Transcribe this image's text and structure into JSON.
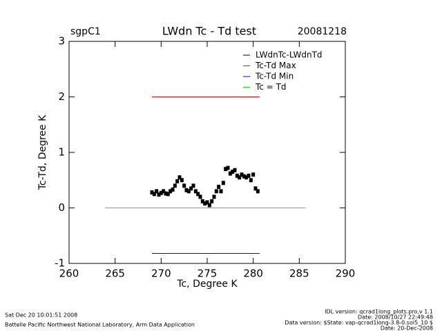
{
  "chart_data": {
    "type": "line",
    "title": "LWdn Tc - Td test",
    "site": "sgpC1",
    "date": "20081218",
    "xlabel": "Tc, Degree K",
    "ylabel": "Tc-Td, Degree K",
    "xlim": [
      260,
      290
    ],
    "xticks": [
      260,
      265,
      270,
      275,
      280,
      285,
      290
    ],
    "ylim": [
      -1,
      3
    ],
    "yticks": [
      -1,
      0,
      1,
      2,
      3
    ],
    "legend": "top-right",
    "series": [
      {
        "name": "LWdnTc-LWdnTd",
        "color": "#000000",
        "mode": "markers",
        "x": [
          269.0,
          269.25,
          269.5,
          269.75,
          270.0,
          270.25,
          270.5,
          270.75,
          271.0,
          271.25,
          271.5,
          271.75,
          272.0,
          272.25,
          272.5,
          272.75,
          273.0,
          273.25,
          273.5,
          273.75,
          274.0,
          274.25,
          274.5,
          274.75,
          275.0,
          275.25,
          275.5,
          275.75,
          276.0,
          276.25,
          276.5,
          276.75,
          277.0,
          277.25,
          277.5,
          277.75,
          278.0,
          278.25,
          278.5,
          278.75,
          279.0,
          279.25,
          279.5,
          279.75,
          280.0,
          280.25,
          280.5
        ],
        "values": [
          0.28,
          0.25,
          0.3,
          0.24,
          0.27,
          0.3,
          0.26,
          0.25,
          0.3,
          0.33,
          0.4,
          0.48,
          0.55,
          0.5,
          0.4,
          0.32,
          0.3,
          0.35,
          0.4,
          0.3,
          0.25,
          0.2,
          0.12,
          0.08,
          0.1,
          0.05,
          0.12,
          0.2,
          0.3,
          0.38,
          0.3,
          0.45,
          0.7,
          0.72,
          0.62,
          0.65,
          0.68,
          0.58,
          0.55,
          0.6,
          0.57,
          0.55,
          0.58,
          0.5,
          0.6,
          0.35,
          0.3
        ]
      },
      {
        "name": "Tc-Td Max",
        "color": "#ff0000",
        "mode": "lines",
        "x": [
          269,
          280.7
        ],
        "values": [
          2,
          2
        ]
      },
      {
        "name": "Tc-Td Min",
        "color": "#0000ff",
        "mode": "lines",
        "x": [
          269,
          280.7
        ],
        "values": [
          -0.82,
          -0.82
        ]
      },
      {
        "name": "Tc = Td",
        "color": "#00ff00",
        "mode": "lines",
        "x": [
          263.9,
          285.7
        ],
        "values": [
          0,
          0
        ]
      }
    ],
    "footer_left": [
      "Sat Dec 20 10:01:51 2008",
      "Battelle Pacific Northwest National Laboratory, Arm Data Application"
    ],
    "footer_right": [
      "IDL version: qcrad1long_plots.pro,v 1.1",
      "Date: 2008/10/27 22:49:48",
      "Data version: $State: vap-qcrad1long-3.8-0.sol5_10 $",
      "Date: 20-Dec-2008"
    ]
  }
}
